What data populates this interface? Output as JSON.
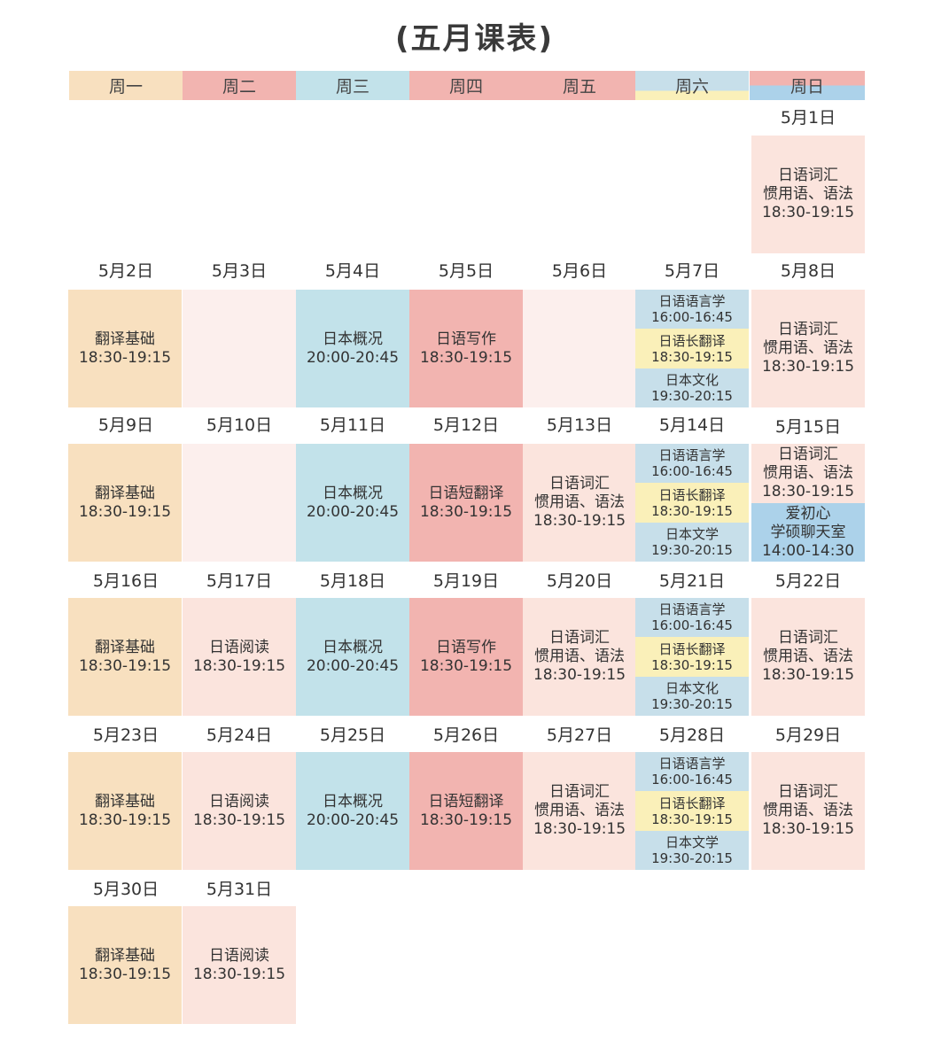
{
  "title": "(五月课表)",
  "colors": {
    "peach": "#f8e0bf",
    "red": "#f2b4b0",
    "blue": "#c2e2ea",
    "pink_light": "#fcefed",
    "pink": "#fbe4dd",
    "sat_blue": "#c7dfea",
    "sat_yellow": "#faf0b9",
    "chat_blue": "#acd2ea"
  },
  "weekdays": [
    "周一",
    "周二",
    "周三",
    "周四",
    "周五",
    "周六",
    "周日"
  ],
  "dates": {
    "d1": "5月1日",
    "d2": "5月2日",
    "d3": "5月3日",
    "d4": "5月4日",
    "d5": "5月5日",
    "d6": "5月6日",
    "d7": "5月7日",
    "d8": "5月8日",
    "d9": "5月9日",
    "d10": "5月10日",
    "d11": "5月11日",
    "d12": "5月12日",
    "d13": "5月13日",
    "d14": "5月14日",
    "d15": "5月15日",
    "d16": "5月16日",
    "d17": "5月17日",
    "d18": "5月18日",
    "d19": "5月19日",
    "d20": "5月20日",
    "d21": "5月21日",
    "d22": "5月22日",
    "d23": "5月23日",
    "d24": "5月24日",
    "d25": "5月25日",
    "d26": "5月26日",
    "d27": "5月27日",
    "d28": "5月28日",
    "d29": "5月29日",
    "d30": "5月30日",
    "d31": "5月31日"
  },
  "courses": {
    "fanyi": "翻译基础",
    "gaikuang": "日本概况",
    "xiezuo": "日语写作",
    "duanfanyi": "日语短翻译",
    "cihui": "日语词汇",
    "guanyong": "惯用语、语法",
    "yuedu": "日语阅读",
    "yuyanxue": "日语语言学",
    "changfanyi": "日语长翻译",
    "wenhua": "日本文化",
    "wenxue": "日本文学",
    "aichuxin": "爱初心",
    "liaotianshi": "学硕聊天室"
  },
  "times": {
    "t1830": "18:30-19:15",
    "t2000": "20:00-20:45",
    "t1600": "16:00-16:45",
    "t1930": "19:30-20:15",
    "t1400": "14:00-14:30"
  }
}
